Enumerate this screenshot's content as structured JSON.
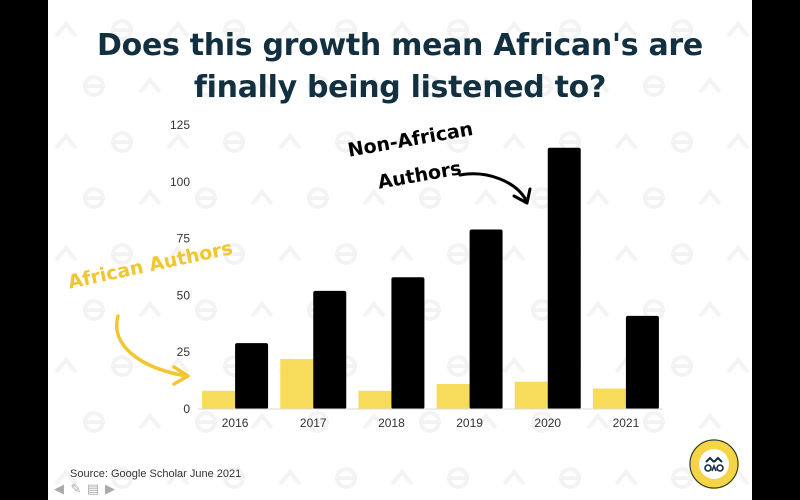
{
  "title_line1": "Does this growth mean African's are",
  "title_line2": "finally being listened to?",
  "annotations": {
    "african": "African Authors",
    "non_african_line1": "Non-African",
    "non_african_line2": "Authors"
  },
  "source": "Source: Google Scholar June 2021",
  "colors": {
    "african": "#f7dc5c",
    "non_african": "#000000",
    "title": "#123040",
    "annotation_yellow": "#f2c531"
  },
  "logo": {
    "text": "OPEN RESTITUTION AFRICA"
  },
  "nav_icons": [
    "arrow-left-icon",
    "pencil-icon",
    "comment-icon",
    "arrow-right-icon"
  ],
  "chart_data": {
    "type": "bar",
    "categories": [
      "2016",
      "2017",
      "2018",
      "2019",
      "2020",
      "2021"
    ],
    "series": [
      {
        "name": "African Authors",
        "values": [
          8,
          22,
          8,
          11,
          12,
          9
        ]
      },
      {
        "name": "Non-African Authors",
        "values": [
          29,
          52,
          58,
          79,
          115,
          41
        ]
      }
    ],
    "yticks": [
      "0",
      "25",
      "50",
      "75",
      "100",
      "125"
    ],
    "ylim": [
      0,
      125
    ],
    "grid": false
  }
}
